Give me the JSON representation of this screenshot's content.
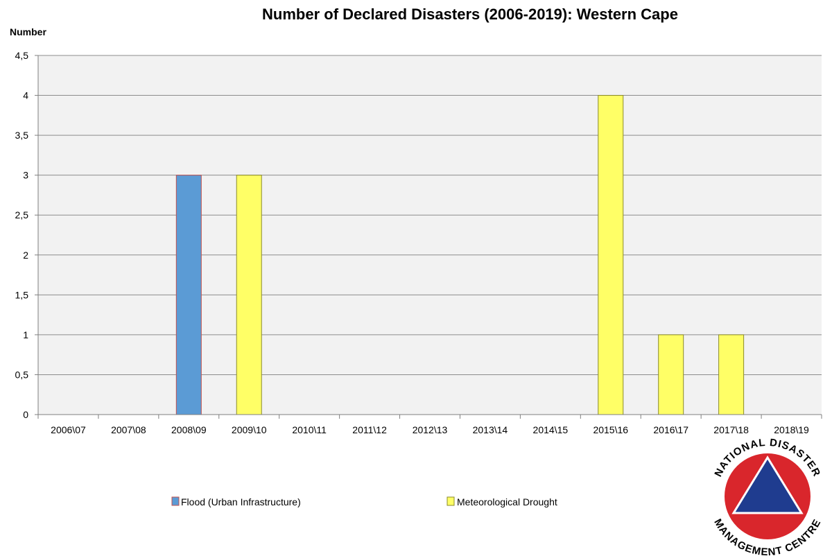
{
  "chart_data": {
    "type": "bar",
    "title": "Number of Declared Disasters (2006-2019): Western Cape",
    "ylabel": "Number",
    "xlabel": "",
    "ylim": [
      0,
      4.5
    ],
    "ytick_step": 0.5,
    "ytick_labels": [
      "0",
      "0,5",
      "1",
      "1,5",
      "2",
      "2,5",
      "3",
      "3,5",
      "4",
      "4,5"
    ],
    "grid": true,
    "legend_position": "bottom",
    "categories": [
      "2006\\07",
      "2007\\08",
      "2008\\09",
      "2009\\10",
      "2010\\11",
      "2011\\12",
      "2012\\13",
      "2013\\14",
      "2014\\15",
      "2015\\16",
      "2016\\17",
      "2017\\18",
      "2018\\19"
    ],
    "series": [
      {
        "name": "Flood (Urban Infrastructure)",
        "color": "#5b9bd5",
        "stroke": "#c0504d",
        "values": [
          0,
          0,
          3,
          0,
          0,
          0,
          0,
          0,
          0,
          0,
          0,
          0,
          0
        ]
      },
      {
        "name": "Meteorological Drought",
        "color": "#ffff66",
        "stroke": "#8a8a2a",
        "values": [
          0,
          0,
          0,
          3,
          0,
          0,
          0,
          0,
          0,
          4,
          1,
          1,
          0
        ]
      }
    ]
  },
  "logo": {
    "text_top": "NATIONAL DISASTER",
    "text_bottom": "MANAGEMENT CENTRE",
    "ring_color": "#d9262c",
    "triangle_color": "#1f3c8f"
  }
}
